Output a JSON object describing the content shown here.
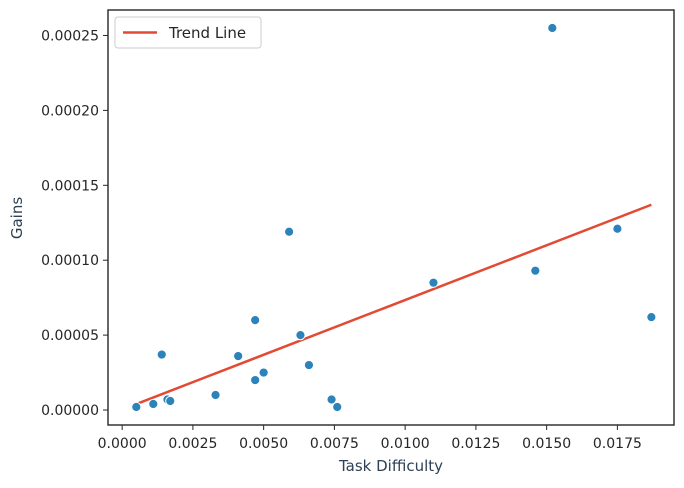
{
  "chart_data": {
    "type": "scatter",
    "title": "",
    "xlabel": "Task Difficulty",
    "ylabel": "Gains",
    "xlim": [
      -0.0005,
      0.0195
    ],
    "ylim": [
      -1e-05,
      0.000267
    ],
    "x_ticks": [
      0.0,
      0.0025,
      0.005,
      0.0075,
      0.01,
      0.0125,
      0.015,
      0.0175
    ],
    "x_tick_labels": [
      "0.0000",
      "0.0025",
      "0.0050",
      "0.0075",
      "0.0100",
      "0.0125",
      "0.0150",
      "0.0175"
    ],
    "y_ticks": [
      0.0,
      5e-05,
      0.0001,
      0.00015,
      0.0002,
      0.00025
    ],
    "y_tick_labels": [
      "0.00000",
      "0.00005",
      "0.00010",
      "0.00015",
      "0.00020",
      "0.00025"
    ],
    "grid": false,
    "legend": {
      "position": "top-left",
      "entries": [
        {
          "label": "Trend Line",
          "color": "#e24a33",
          "marker": "line"
        }
      ]
    },
    "series": [
      {
        "type": "scatter",
        "color": "#2b83ba",
        "points": [
          {
            "x": 0.0005,
            "y": 2e-06
          },
          {
            "x": 0.0011,
            "y": 4e-06
          },
          {
            "x": 0.0014,
            "y": 3.7e-05
          },
          {
            "x": 0.0016,
            "y": 7e-06
          },
          {
            "x": 0.0017,
            "y": 6e-06
          },
          {
            "x": 0.0033,
            "y": 1e-05
          },
          {
            "x": 0.0041,
            "y": 3.6e-05
          },
          {
            "x": 0.0047,
            "y": 2e-05
          },
          {
            "x": 0.0047,
            "y": 6e-05
          },
          {
            "x": 0.005,
            "y": 2.5e-05
          },
          {
            "x": 0.0059,
            "y": 0.000119
          },
          {
            "x": 0.0063,
            "y": 5e-05
          },
          {
            "x": 0.0066,
            "y": 3e-05
          },
          {
            "x": 0.0074,
            "y": 7e-06
          },
          {
            "x": 0.0076,
            "y": 2e-06
          },
          {
            "x": 0.011,
            "y": 8.5e-05
          },
          {
            "x": 0.0146,
            "y": 9.3e-05
          },
          {
            "x": 0.0152,
            "y": 0.000255
          },
          {
            "x": 0.0175,
            "y": 0.000121
          },
          {
            "x": 0.0187,
            "y": 6.2e-05
          }
        ]
      },
      {
        "type": "line",
        "name": "Trend Line",
        "color": "#e24a33",
        "points": [
          {
            "x": 0.0005,
            "y": 4e-06
          },
          {
            "x": 0.0187,
            "y": 0.000137
          }
        ]
      }
    ]
  }
}
